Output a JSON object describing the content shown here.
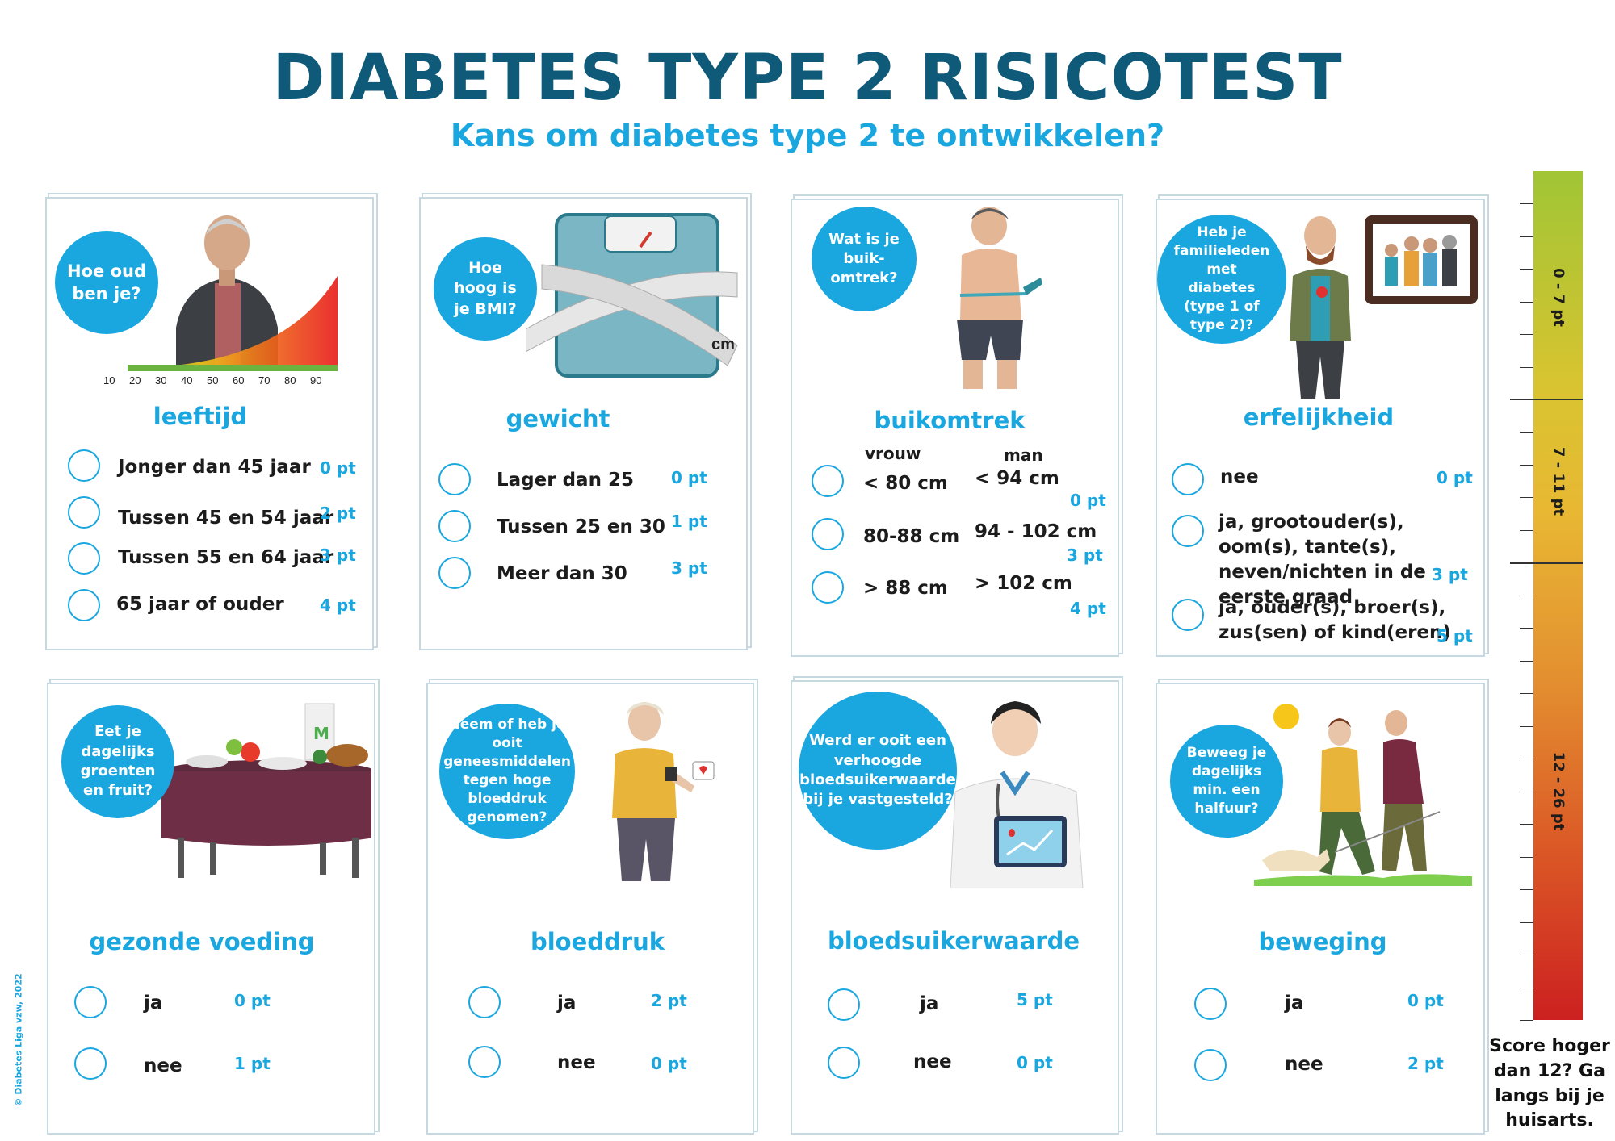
{
  "title": "DIABETES TYPE 2 RISICOTEST",
  "subtitle": "Kans om diabetes type 2 te ontwikkelen?",
  "cards": {
    "leeftijd": {
      "question": "Hoe oud ben je?",
      "heading": "leeftijd",
      "age_ticks": [
        "10",
        "20",
        "30",
        "40",
        "50",
        "60",
        "70",
        "80",
        "90"
      ],
      "options": [
        {
          "label": "Jonger dan 45 jaar",
          "points": "0 pt"
        },
        {
          "label": "Tussen 45 en 54 jaar",
          "points": "2 pt"
        },
        {
          "label": "Tussen 55 en 64 jaar",
          "points": "3 pt"
        },
        {
          "label": "65 jaar of ouder",
          "points": "4 pt"
        }
      ]
    },
    "gewicht": {
      "question": "Hoe hoog is je BMI?",
      "heading": "gewicht",
      "tape_unit": "cm",
      "options": [
        {
          "label": "Lager dan 25",
          "points": "0 pt"
        },
        {
          "label": "Tussen 25 en 30",
          "points": "1 pt"
        },
        {
          "label": "Meer dan 30",
          "points": "3 pt"
        }
      ]
    },
    "buikomtrek": {
      "question": "Wat is je buik-omtrek?",
      "heading": "buikomtrek",
      "col_woman": "vrouw",
      "col_man": "man",
      "options": [
        {
          "woman": "< 80 cm",
          "man": "< 94 cm",
          "points": "0 pt"
        },
        {
          "woman": "80-88 cm",
          "man": "94 - 102 cm",
          "points": "3  pt"
        },
        {
          "woman": "> 88 cm",
          "man": "> 102 cm",
          "points": "4 pt"
        }
      ]
    },
    "erfelijkheid": {
      "question": "Heb je familieleden met diabetes (type 1 of type 2)?",
      "heading": "erfelijkheid",
      "options": [
        {
          "label": "nee",
          "points": "0 pt"
        },
        {
          "label": "ja, grootouder(s), oom(s), tante(s), neven/nichten in de eerste graad",
          "points": "3  pt"
        },
        {
          "label": "ja, ouder(s), broer(s), zus(sen) of kind(eren)",
          "points": "5 pt"
        }
      ]
    },
    "voeding": {
      "question": "Eet je dagelijks groenten en fruit?",
      "heading": "gezonde voeding",
      "options": [
        {
          "label": "ja",
          "points": "0 pt"
        },
        {
          "label": "nee",
          "points": "1 pt"
        }
      ]
    },
    "bloeddruk": {
      "question": "Neem of heb je ooit geneesmiddelen tegen hoge bloeddruk genomen?",
      "heading": "bloeddruk",
      "options": [
        {
          "label": "ja",
          "points": "2 pt"
        },
        {
          "label": "nee",
          "points": "0 pt"
        }
      ]
    },
    "bloedsuiker": {
      "question": "Werd er ooit een verhoogde bloedsuikerwaarde bij je vastgesteld?",
      "heading": "bloedsuikerwaarde",
      "options": [
        {
          "label": "ja",
          "points": "5 pt"
        },
        {
          "label": "nee",
          "points": "0 pt"
        }
      ]
    },
    "beweging": {
      "question": "Beweeg je dagelijks min. een halfuur?",
      "heading": "beweging",
      "options": [
        {
          "label": "ja",
          "points": "0 pt"
        },
        {
          "label": "nee",
          "points": "2 pt"
        }
      ]
    }
  },
  "scale": {
    "ranges": [
      "0 - 7 pt",
      "7 - 11 pt",
      "12 - 26 pt"
    ],
    "note": "Score hoger dan 12? Ga langs bij je huisarts."
  },
  "copyright": "© Diabetes Liga vzw, 2022",
  "colors": {
    "title": "#0e5a78",
    "accent": "#1aa7e0",
    "card_border": "#c6d8e0"
  }
}
